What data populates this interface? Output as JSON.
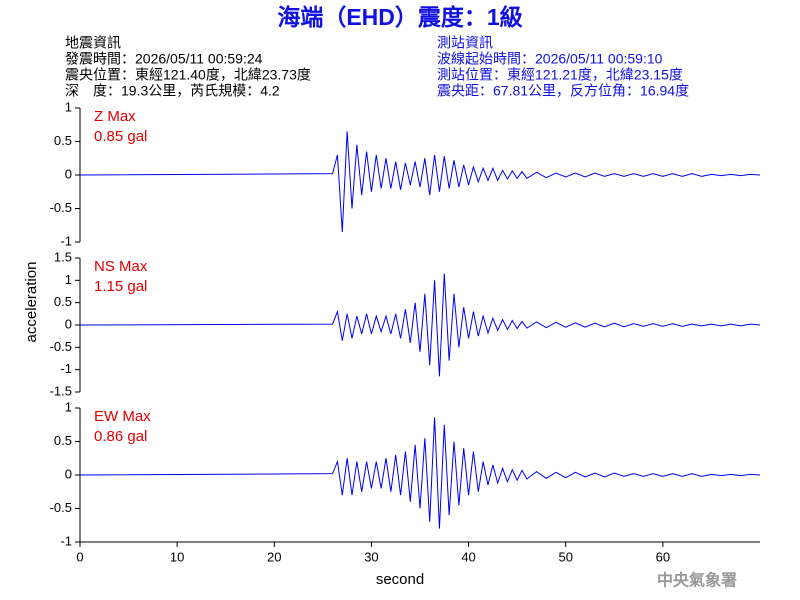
{
  "header": {
    "title": "海端（EHD）震度：1級",
    "left": [
      "地震資訊",
      "發震時間：2026/05/11 00:59:24",
      "震央位置：東經121.40度，北緯23.73度",
      "深　度：19.3公里，芮氏規模：4.2"
    ],
    "right": [
      "測站資訊",
      "波線起始時間：2026/05/11 00:59:10",
      "測站位置：東經121.21度，北緯23.15度",
      "震央距：67.81公里，反方位角：16.94度"
    ]
  },
  "chart_data": {
    "type": "line",
    "color": "#0000ee",
    "xlabel": "second",
    "ylabel": "acceleration",
    "xlim": [
      0,
      70
    ],
    "xticks": [
      0,
      10,
      20,
      30,
      40,
      50,
      60
    ],
    "x": [
      0,
      26,
      26.5,
      27,
      27.5,
      28,
      28.5,
      29,
      29.5,
      30,
      30.5,
      31,
      31.5,
      32,
      32.5,
      33,
      33.5,
      34,
      34.5,
      35,
      35.5,
      36,
      36.5,
      37,
      37.5,
      38,
      38.5,
      39,
      39.5,
      40,
      40.5,
      41,
      41.5,
      42,
      42.5,
      43,
      43.5,
      44,
      44.5,
      45,
      45.5,
      46,
      47,
      48,
      49,
      50,
      51,
      52,
      53,
      54,
      55,
      56,
      57,
      58,
      59,
      60,
      61,
      62,
      63,
      64,
      65,
      66,
      67,
      68,
      69,
      70
    ],
    "panels": [
      {
        "annotations": [
          "Z Max",
          "0.85 gal"
        ],
        "ylim": [
          -1,
          1
        ],
        "yticks": [
          -1,
          -0.5,
          0,
          0.5,
          1
        ],
        "values": [
          0,
          0.02,
          0.3,
          -0.85,
          0.65,
          -0.5,
          0.45,
          -0.3,
          0.35,
          -0.25,
          0.3,
          -0.2,
          0.25,
          -0.2,
          0.2,
          -0.22,
          0.18,
          -0.15,
          0.2,
          -0.18,
          0.25,
          -0.3,
          0.3,
          -0.25,
          0.28,
          -0.2,
          0.22,
          -0.18,
          0.15,
          -0.15,
          0.12,
          -0.1,
          0.1,
          -0.08,
          0.1,
          -0.08,
          0.07,
          -0.06,
          0.06,
          -0.05,
          0.05,
          -0.05,
          0.04,
          -0.04,
          0.03,
          -0.03,
          0.03,
          -0.03,
          0.03,
          -0.02,
          0.02,
          -0.02,
          0.02,
          -0.02,
          0.02,
          -0.02,
          0.02,
          -0.02,
          0.02,
          -0.02,
          0.01,
          -0.01,
          0.01,
          -0.01,
          0.01,
          0
        ]
      },
      {
        "annotations": [
          "NS Max",
          "1.15 gal"
        ],
        "ylim": [
          -1.5,
          1.5
        ],
        "yticks": [
          -1.5,
          -1,
          -0.5,
          0,
          0.5,
          1,
          1.5
        ],
        "values": [
          0,
          0.02,
          0.3,
          -0.35,
          0.25,
          -0.3,
          0.2,
          -0.2,
          0.25,
          -0.2,
          0.2,
          -0.15,
          0.2,
          -0.2,
          0.25,
          -0.3,
          0.35,
          -0.4,
          0.5,
          -0.6,
          0.7,
          -0.9,
          1.0,
          -1.15,
          1.15,
          -0.8,
          0.7,
          -0.5,
          0.4,
          -0.3,
          0.3,
          -0.25,
          0.2,
          -0.18,
          0.15,
          -0.12,
          0.12,
          -0.1,
          0.1,
          -0.08,
          0.08,
          -0.07,
          0.07,
          -0.06,
          0.06,
          -0.05,
          0.05,
          -0.05,
          0.04,
          -0.04,
          0.04,
          -0.04,
          0.03,
          -0.03,
          0.03,
          -0.03,
          0.03,
          -0.03,
          0.02,
          -0.02,
          0.02,
          -0.02,
          0.02,
          -0.02,
          0.02,
          0
        ]
      },
      {
        "annotations": [
          "EW Max",
          "0.86 gal"
        ],
        "ylim": [
          -1,
          1
        ],
        "yticks": [
          -1,
          -0.5,
          0,
          0.5,
          1
        ],
        "values": [
          0,
          0.02,
          0.2,
          -0.3,
          0.25,
          -0.3,
          0.2,
          -0.25,
          0.2,
          -0.2,
          0.2,
          -0.2,
          0.25,
          -0.25,
          0.3,
          -0.3,
          0.35,
          -0.4,
          0.45,
          -0.5,
          0.55,
          -0.7,
          0.86,
          -0.8,
          0.75,
          -0.6,
          0.5,
          -0.45,
          0.4,
          -0.3,
          0.35,
          -0.25,
          0.2,
          -0.15,
          0.15,
          -0.12,
          0.1,
          -0.1,
          0.08,
          -0.08,
          0.07,
          -0.06,
          0.05,
          -0.05,
          0.04,
          -0.04,
          0.04,
          -0.03,
          0.03,
          -0.03,
          0.03,
          -0.02,
          0.02,
          -0.02,
          0.02,
          -0.02,
          0.02,
          -0.02,
          0.02,
          -0.02,
          0.01,
          -0.01,
          0.01,
          -0.01,
          0.01,
          0
        ]
      }
    ]
  },
  "footer": "中央氣象署"
}
